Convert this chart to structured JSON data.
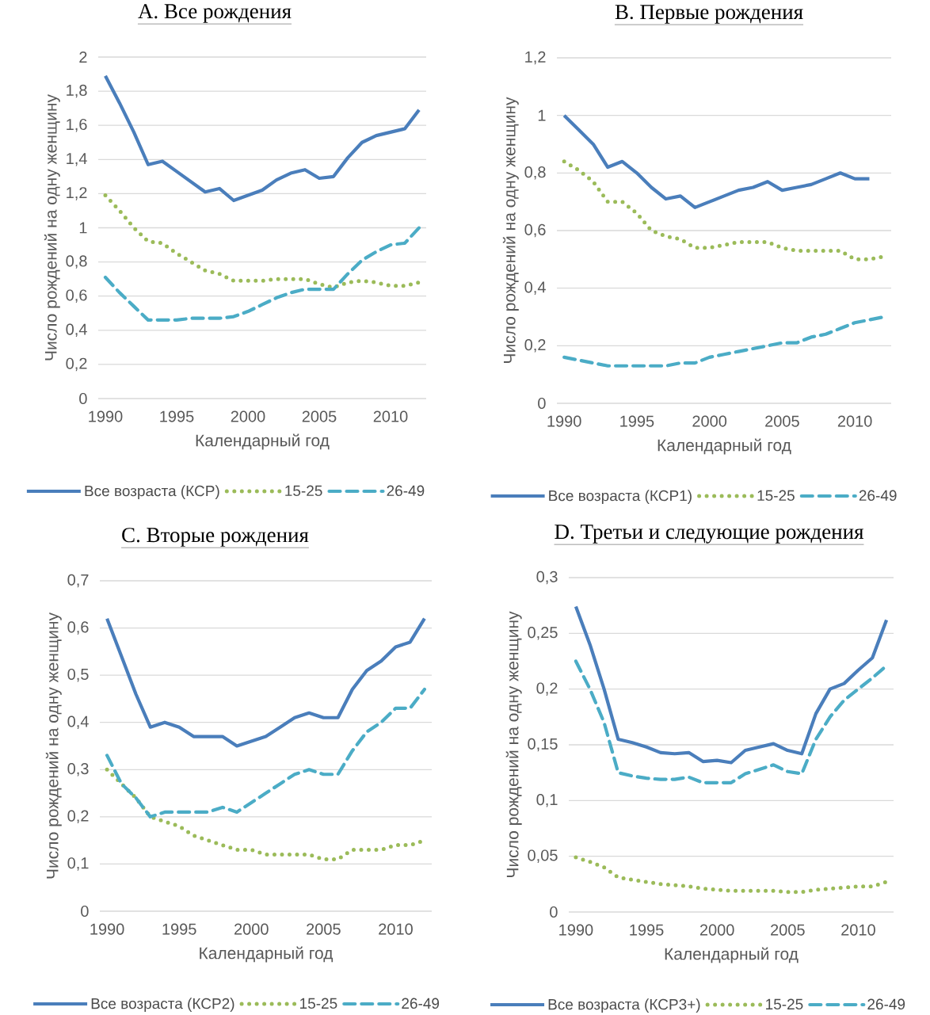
{
  "chart_data": [
    {
      "type": "line",
      "title": "A. Все рождения",
      "xlabel": "Календарный год",
      "ylabel": "Число рождений на одну женщину",
      "legend": "bottom",
      "grid": "y",
      "x": [
        1990,
        1991,
        1992,
        1993,
        1994,
        1995,
        1996,
        1997,
        1998,
        1999,
        2000,
        2001,
        2002,
        2003,
        2004,
        2005,
        2006,
        2007,
        2008,
        2009,
        2010,
        2011,
        2012
      ],
      "xlim": [
        1989.5,
        2012.5
      ],
      "xticks": [
        1990,
        1995,
        2000,
        2005,
        2010
      ],
      "ylim": [
        0,
        2
      ],
      "yticks": [
        0,
        {
          "value": 0.2,
          "label": "0,2"
        },
        {
          "value": 0.4,
          "label": "0,4"
        },
        {
          "value": 0.6,
          "label": "0,6"
        },
        {
          "value": 0.8,
          "label": "0,8"
        },
        1,
        {
          "value": 1.2,
          "label": "1,2"
        },
        {
          "value": 1.4,
          "label": "1,4"
        },
        {
          "value": 1.6,
          "label": "1,6"
        },
        {
          "value": 1.8,
          "label": "1,8"
        },
        2
      ],
      "series": [
        {
          "name": "Все возраста (КСР)",
          "color": "#4a7ebb",
          "line_style": "solid",
          "values": [
            1.89,
            1.73,
            1.56,
            1.37,
            1.39,
            1.33,
            1.27,
            1.21,
            1.23,
            1.16,
            1.19,
            1.22,
            1.28,
            1.32,
            1.34,
            1.29,
            1.3,
            1.41,
            1.5,
            1.54,
            1.56,
            1.58,
            1.69
          ]
        },
        {
          "name": "15-25",
          "color": "#9bbb59",
          "line_style": "dotted",
          "values": [
            1.19,
            1.1,
            1.0,
            0.92,
            0.91,
            0.85,
            0.8,
            0.75,
            0.73,
            0.69,
            0.69,
            0.69,
            0.7,
            0.7,
            0.7,
            0.67,
            0.65,
            0.68,
            0.69,
            0.68,
            0.66,
            0.66,
            0.68
          ]
        },
        {
          "name": "26-49",
          "color": "#4bacc6",
          "line_style": "dashed",
          "values": [
            0.71,
            0.62,
            0.54,
            0.46,
            0.46,
            0.46,
            0.47,
            0.47,
            0.47,
            0.48,
            0.51,
            0.55,
            0.59,
            0.62,
            0.64,
            0.64,
            0.64,
            0.73,
            0.81,
            0.86,
            0.9,
            0.91,
            1.0
          ]
        }
      ]
    },
    {
      "type": "line",
      "title": "B. Первые рождения",
      "xlabel": "Календарный год",
      "ylabel": "Число рождений на одну женщину",
      "legend": "bottom",
      "grid": "y",
      "x": [
        1990,
        1991,
        1992,
        1993,
        1994,
        1995,
        1996,
        1997,
        1998,
        1999,
        2000,
        2001,
        2002,
        2003,
        2004,
        2005,
        2006,
        2007,
        2008,
        2009,
        2010,
        2011,
        2012
      ],
      "xlim": [
        1989.5,
        2012.5
      ],
      "xticks": [
        1990,
        1995,
        2000,
        2005,
        2010
      ],
      "ylim": [
        0,
        1.2
      ],
      "yticks": [
        0,
        {
          "value": 0.2,
          "label": "0,2"
        },
        {
          "value": 0.4,
          "label": "0,4"
        },
        {
          "value": 0.6,
          "label": "0,6"
        },
        {
          "value": 0.8,
          "label": "0,8"
        },
        1,
        {
          "value": 1.2,
          "label": "1,2"
        }
      ],
      "series": [
        {
          "name": "Все возраста (КСР1)",
          "color": "#4a7ebb",
          "line_style": "solid",
          "values": [
            1.0,
            0.95,
            0.9,
            0.82,
            0.84,
            0.8,
            0.75,
            0.71,
            0.72,
            0.68,
            0.7,
            0.72,
            0.74,
            0.75,
            0.77,
            0.74,
            0.75,
            0.76,
            0.78,
            0.8,
            0.78,
            0.78,
            null
          ]
        },
        {
          "name": "15-25",
          "color": "#9bbb59",
          "line_style": "dotted",
          "values": [
            0.84,
            0.81,
            0.77,
            0.7,
            0.7,
            0.66,
            0.6,
            0.58,
            0.57,
            0.54,
            0.54,
            0.55,
            0.56,
            0.56,
            0.56,
            0.54,
            0.53,
            0.53,
            0.53,
            0.53,
            0.5,
            0.5,
            0.51
          ]
        },
        {
          "name": "26-49",
          "color": "#4bacc6",
          "line_style": "dashed",
          "values": [
            0.16,
            0.15,
            0.14,
            0.13,
            0.13,
            0.13,
            0.13,
            0.13,
            0.14,
            0.14,
            0.16,
            0.17,
            0.18,
            0.19,
            0.2,
            0.21,
            0.21,
            0.23,
            0.24,
            0.26,
            0.28,
            0.29,
            0.3
          ]
        }
      ]
    },
    {
      "type": "line",
      "title": "C. Вторые рождения",
      "xlabel": "Календарный год",
      "ylabel": "Число рождений на одну женщину",
      "legend": "bottom",
      "grid": "y",
      "x": [
        1990,
        1991,
        1992,
        1993,
        1994,
        1995,
        1996,
        1997,
        1998,
        1999,
        2000,
        2001,
        2002,
        2003,
        2004,
        2005,
        2006,
        2007,
        2008,
        2009,
        2010,
        2011,
        2012
      ],
      "xlim": [
        1989.5,
        2012.5
      ],
      "xticks": [
        1990,
        1995,
        2000,
        2005,
        2010
      ],
      "ylim": [
        0,
        0.7
      ],
      "yticks": [
        0,
        {
          "value": 0.1,
          "label": "0,1"
        },
        {
          "value": 0.2,
          "label": "0,2"
        },
        {
          "value": 0.3,
          "label": "0,3"
        },
        {
          "value": 0.4,
          "label": "0,4"
        },
        {
          "value": 0.5,
          "label": "0,5"
        },
        {
          "value": 0.6,
          "label": "0,6"
        },
        {
          "value": 0.7,
          "label": "0,7"
        }
      ],
      "series": [
        {
          "name": "Все возраста (КСР2)",
          "color": "#4a7ebb",
          "line_style": "solid",
          "values": [
            0.62,
            0.54,
            0.46,
            0.39,
            0.4,
            0.39,
            0.37,
            0.37,
            0.37,
            0.35,
            0.36,
            0.37,
            0.39,
            0.41,
            0.42,
            0.41,
            0.41,
            0.47,
            0.51,
            0.53,
            0.56,
            0.57,
            0.62
          ]
        },
        {
          "name": "15-25",
          "color": "#9bbb59",
          "line_style": "dotted",
          "values": [
            0.3,
            0.27,
            0.24,
            0.2,
            0.19,
            0.18,
            0.16,
            0.15,
            0.14,
            0.13,
            0.13,
            0.12,
            0.12,
            0.12,
            0.12,
            0.11,
            0.11,
            0.13,
            0.13,
            0.13,
            0.14,
            0.14,
            0.15
          ]
        },
        {
          "name": "26-49",
          "color": "#4bacc6",
          "line_style": "dashed",
          "values": [
            0.33,
            0.27,
            0.24,
            0.2,
            0.21,
            0.21,
            0.21,
            0.21,
            0.22,
            0.21,
            0.23,
            0.25,
            0.27,
            0.29,
            0.3,
            0.29,
            0.29,
            0.34,
            0.38,
            0.4,
            0.43,
            0.43,
            0.47
          ]
        }
      ]
    },
    {
      "type": "line",
      "title": "D. Третьи и следующие рождения",
      "xlabel": "Календарный год",
      "ylabel": "Число рождений на одну женщину",
      "legend": "bottom",
      "grid": "y",
      "x": [
        1990,
        1991,
        1992,
        1993,
        1994,
        1995,
        1996,
        1997,
        1998,
        1999,
        2000,
        2001,
        2002,
        2003,
        2004,
        2005,
        2006,
        2007,
        2008,
        2009,
        2010,
        2011,
        2012
      ],
      "xlim": [
        1989.5,
        2012.5
      ],
      "xticks": [
        1990,
        1995,
        2000,
        2005,
        2010
      ],
      "ylim": [
        0,
        0.3
      ],
      "yticks": [
        0,
        {
          "value": 0.05,
          "label": "0,05"
        },
        {
          "value": 0.1,
          "label": "0,1"
        },
        {
          "value": 0.15,
          "label": "0,15"
        },
        {
          "value": 0.2,
          "label": "0,2"
        },
        {
          "value": 0.25,
          "label": "0,25"
        },
        {
          "value": 0.3,
          "label": "0,3"
        }
      ],
      "series": [
        {
          "name": "Все возраста (КСР3+)",
          "color": "#4a7ebb",
          "line_style": "solid",
          "values": [
            0.274,
            0.24,
            0.2,
            0.155,
            0.152,
            0.148,
            0.143,
            0.142,
            0.143,
            0.135,
            0.136,
            0.134,
            0.145,
            0.148,
            0.151,
            0.145,
            0.142,
            0.178,
            0.2,
            0.205,
            0.217,
            0.228,
            0.262
          ]
        },
        {
          "name": "15-25",
          "color": "#9bbb59",
          "line_style": "dotted",
          "values": [
            0.049,
            0.045,
            0.04,
            0.031,
            0.029,
            0.027,
            0.025,
            0.024,
            0.023,
            0.021,
            0.02,
            0.019,
            0.019,
            0.019,
            0.019,
            0.018,
            0.018,
            0.02,
            0.021,
            0.022,
            0.023,
            0.023,
            0.027
          ]
        },
        {
          "name": "26-49",
          "color": "#4bacc6",
          "line_style": "dashed",
          "values": [
            0.225,
            0.2,
            0.17,
            0.125,
            0.122,
            0.12,
            0.119,
            0.119,
            0.121,
            0.116,
            0.116,
            0.116,
            0.124,
            0.128,
            0.132,
            0.126,
            0.124,
            0.155,
            0.175,
            0.19,
            0.2,
            0.21,
            0.221
          ]
        }
      ]
    }
  ]
}
